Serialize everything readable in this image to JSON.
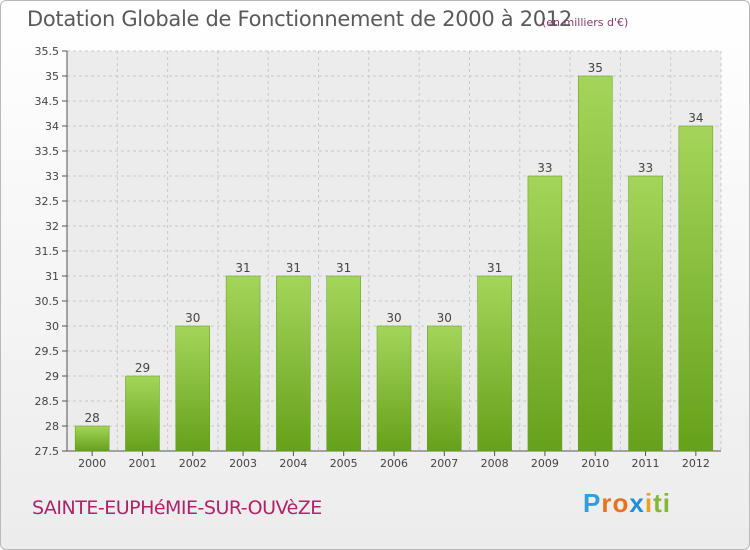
{
  "colors": {
    "bar_top": "#a4d55a",
    "bar_bottom": "#66a11b",
    "label": "#444444",
    "title": "#5a5a5a",
    "city": "#b0226a",
    "subtitle": "#8a3a6a"
  },
  "logo_letters": [
    {
      "char": "P",
      "color": "#2f9fd9"
    },
    {
      "char": "r",
      "color": "#e8731e"
    },
    {
      "char": "o",
      "color": "#e8731e"
    },
    {
      "char": "x",
      "color": "#1e8fd6"
    },
    {
      "char": "i",
      "color": "#e8a21e"
    },
    {
      "char": "t",
      "color": "#83b83a"
    },
    {
      "char": "i",
      "color": "#83b83a"
    }
  ],
  "chart_data": {
    "type": "bar",
    "title": "Dotation Globale de Fonctionnement de 2000 à 2012",
    "subtitle": "(en milliers d'€)",
    "footer_label": "SAINTE-EUPHéMIE-SUR-OUVèZE",
    "categories": [
      "2000",
      "2001",
      "2002",
      "2003",
      "2004",
      "2005",
      "2006",
      "2007",
      "2008",
      "2009",
      "2010",
      "2011",
      "2012"
    ],
    "values": [
      28,
      29,
      30,
      31,
      31,
      31,
      30,
      30,
      31,
      33,
      35,
      33,
      34
    ],
    "data_labels": [
      "28",
      "29",
      "30",
      "31",
      "31",
      "31",
      "30",
      "30",
      "31",
      "33",
      "35",
      "33",
      "34"
    ],
    "ylim": [
      27.5,
      35.5
    ],
    "yticks": [
      "27.5",
      "28",
      "28.5",
      "29",
      "29.5",
      "30",
      "30.5",
      "31",
      "31.5",
      "32",
      "32.5",
      "33",
      "33.5",
      "34",
      "34.5",
      "35",
      "35.5"
    ],
    "grid": true,
    "xlabel": "",
    "ylabel": ""
  }
}
